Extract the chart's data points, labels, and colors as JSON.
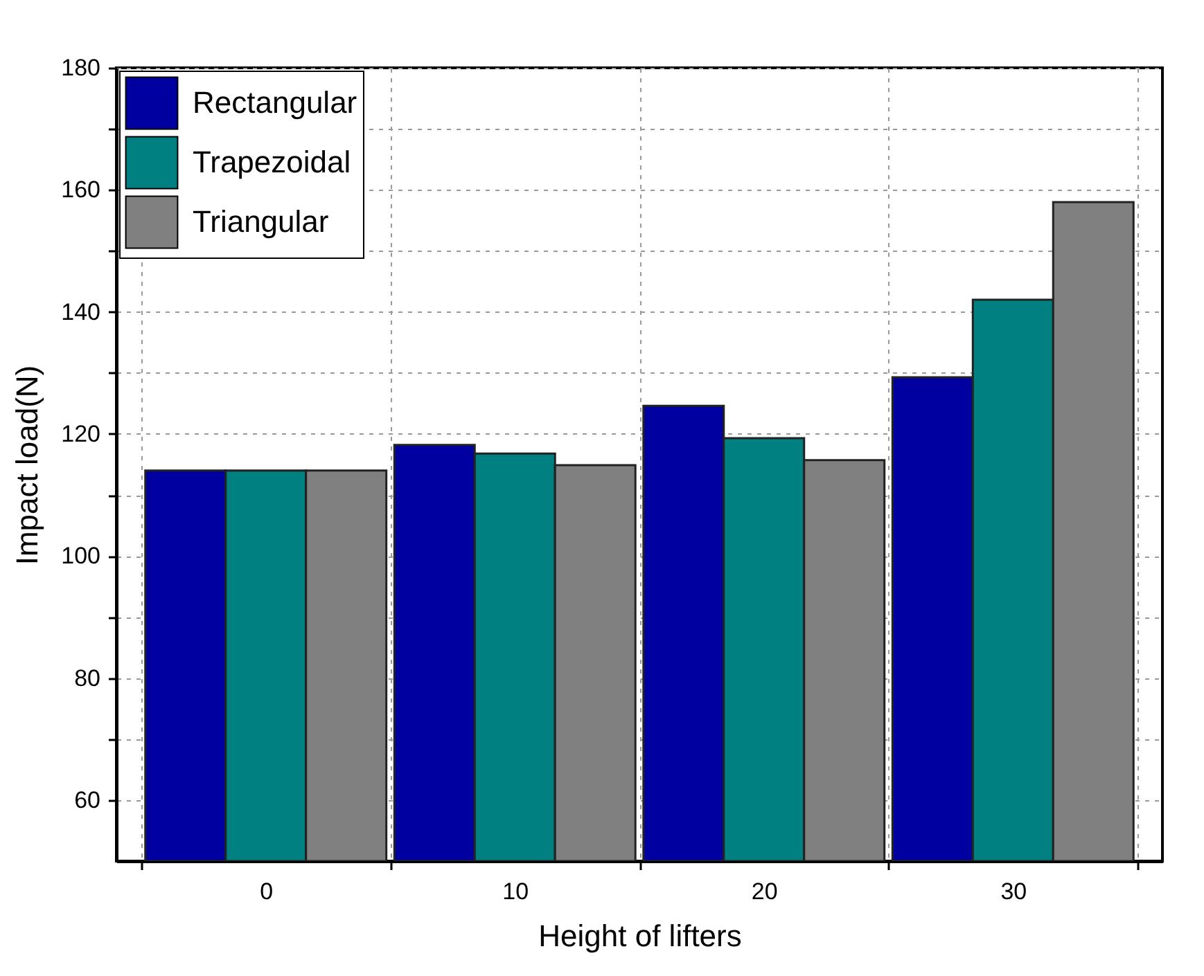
{
  "chart_data": {
    "type": "bar",
    "xlabel": "Height of lifters",
    "ylabel": "Impact load(N)",
    "categories": [
      "0",
      "10",
      "20",
      "30"
    ],
    "series": [
      {
        "name": "Rectangular",
        "color": "#0000a0",
        "values": [
          114,
          118.2,
          124.6,
          129.3
        ]
      },
      {
        "name": "Trapezoidal",
        "color": "#008080",
        "values": [
          114,
          116.8,
          119.3,
          142
        ]
      },
      {
        "name": "Triangular",
        "color": "#808080",
        "values": [
          114,
          114.9,
          115.7,
          158
        ]
      }
    ],
    "ylim": [
      50,
      180
    ],
    "yticks": [
      60,
      {
        "value": 70,
        "label": null
      },
      80,
      {
        "value": 90,
        "label": null
      },
      100,
      {
        "value": 110,
        "label": null
      },
      120,
      {
        "value": 130,
        "label": null
      },
      140,
      {
        "value": 150,
        "label": null
      },
      160,
      {
        "value": 170,
        "label": null
      },
      180
    ],
    "grid": true,
    "legend": "top left"
  }
}
